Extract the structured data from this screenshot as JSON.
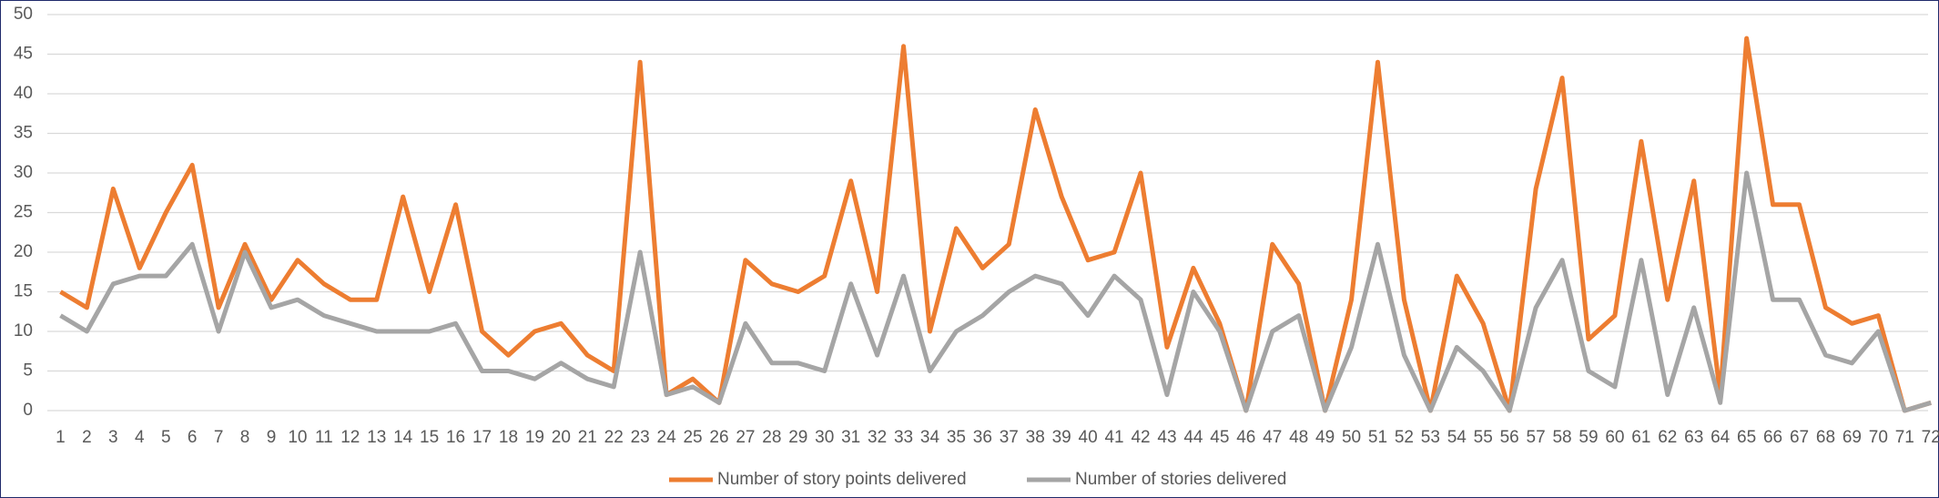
{
  "chart_data": {
    "type": "line",
    "categories": [
      "1",
      "2",
      "3",
      "4",
      "5",
      "6",
      "7",
      "8",
      "9",
      "10",
      "11",
      "12",
      "13",
      "14",
      "15",
      "16",
      "17",
      "18",
      "19",
      "20",
      "21",
      "22",
      "23",
      "24",
      "25",
      "26",
      "27",
      "28",
      "29",
      "30",
      "31",
      "32",
      "33",
      "34",
      "35",
      "36",
      "37",
      "38",
      "39",
      "40",
      "41",
      "42",
      "43",
      "44",
      "45",
      "46",
      "47",
      "48",
      "49",
      "50",
      "51",
      "52",
      "53",
      "54",
      "55",
      "56",
      "57",
      "58",
      "59",
      "60",
      "61",
      "62",
      "63",
      "64",
      "65",
      "66",
      "67",
      "68",
      "69",
      "70",
      "71",
      "72"
    ],
    "series": [
      {
        "name": "Number of story points delivered",
        "color": "#ed7d31",
        "values": [
          15,
          13,
          28,
          18,
          25,
          31,
          13,
          21,
          14,
          19,
          16,
          14,
          14,
          27,
          15,
          26,
          10,
          7,
          10,
          11,
          7,
          5,
          44,
          2,
          4,
          1,
          19,
          16,
          15,
          17,
          29,
          15,
          46,
          10,
          23,
          18,
          21,
          38,
          27,
          19,
          20,
          30,
          8,
          18,
          11,
          0,
          21,
          16,
          0,
          14,
          44,
          14,
          0,
          17,
          11,
          0,
          28,
          42,
          9,
          12,
          34,
          14,
          29,
          2,
          47,
          26,
          26,
          13,
          11,
          12,
          0,
          1
        ]
      },
      {
        "name": "Number of stories delivered",
        "color": "#a5a5a5",
        "values": [
          12,
          10,
          16,
          17,
          17,
          21,
          10,
          20,
          13,
          14,
          12,
          11,
          10,
          10,
          10,
          11,
          5,
          5,
          4,
          6,
          4,
          3,
          20,
          2,
          3,
          1,
          11,
          6,
          6,
          5,
          16,
          7,
          17,
          5,
          10,
          12,
          15,
          17,
          16,
          12,
          17,
          14,
          2,
          15,
          10,
          0,
          10,
          12,
          0,
          8,
          21,
          7,
          0,
          8,
          5,
          0,
          13,
          19,
          5,
          3,
          19,
          2,
          13,
          1,
          30,
          14,
          14,
          7,
          6,
          10,
          0,
          1
        ]
      }
    ],
    "ylim": [
      0,
      50
    ],
    "yticks": [
      0,
      5,
      10,
      15,
      20,
      25,
      30,
      35,
      40,
      45,
      50
    ],
    "grid": true,
    "legend": "bottom"
  }
}
